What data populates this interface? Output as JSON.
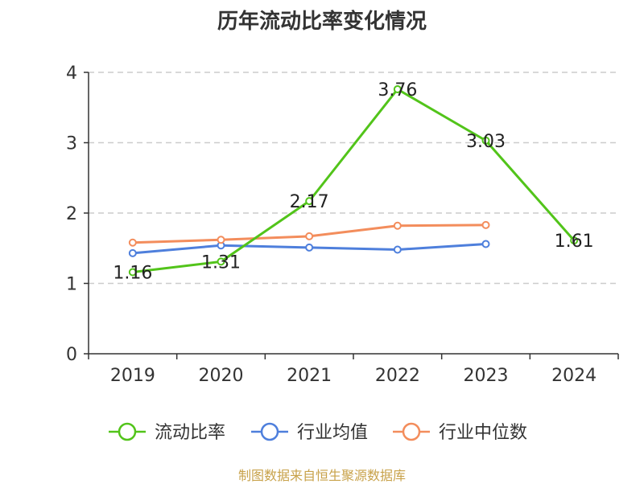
{
  "colors": {
    "series_1": "#52c41a",
    "series_2": "#4e7fdc",
    "series_3": "#f38d5c",
    "axis": "#333333",
    "grid": "#cccccc",
    "source": "#c8a24a"
  },
  "source": "制图数据来自恒生聚源数据库",
  "chart_data": {
    "type": "line",
    "title": "历年流动比率变化情况",
    "categories": [
      "2019",
      "2020",
      "2021",
      "2022",
      "2023",
      "2024"
    ],
    "y_ticks": [
      "0",
      "1",
      "2",
      "3",
      "4"
    ],
    "ylim": [
      0,
      4
    ],
    "grid": "horizontal dashed",
    "legend_position": "bottom",
    "series": [
      {
        "name": "流动比率",
        "values": [
          1.16,
          1.31,
          2.17,
          3.76,
          3.03,
          1.61
        ],
        "labels": [
          "1.16",
          "1.31",
          "2.17",
          "3.76",
          "3.03",
          "1.61"
        ],
        "show_labels": true
      },
      {
        "name": "行业均值",
        "values": [
          1.43,
          1.54,
          1.51,
          1.48,
          1.56,
          null
        ],
        "show_labels": false
      },
      {
        "name": "行业中位数",
        "values": [
          1.58,
          1.62,
          1.67,
          1.82,
          1.83,
          null
        ],
        "show_labels": false
      }
    ]
  }
}
